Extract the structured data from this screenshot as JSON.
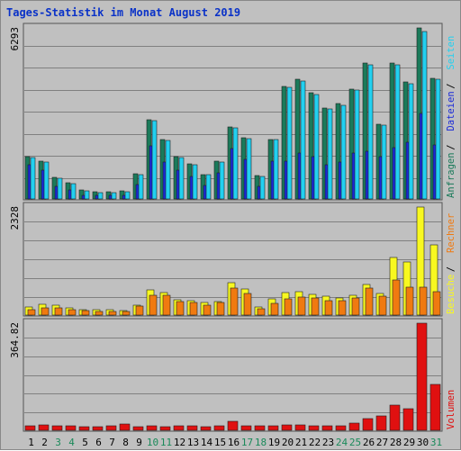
{
  "chart_data": {
    "type": "bar",
    "title": "Tages-Statistik im Monat August 2019",
    "categories": [
      "1",
      "2",
      "3",
      "4",
      "5",
      "6",
      "7",
      "8",
      "9",
      "10",
      "11",
      "12",
      "13",
      "14",
      "15",
      "16",
      "17",
      "18",
      "19",
      "20",
      "21",
      "22",
      "23",
      "24",
      "25",
      "26",
      "27",
      "28",
      "29",
      "30",
      "31"
    ],
    "weekend_days": [
      "3",
      "4",
      "10",
      "11",
      "17",
      "18",
      "24",
      "25",
      "31"
    ],
    "colors": {
      "anfragen": "#1a7a5a",
      "dateien": "#1a2ad8",
      "seiten": "#22d0f0",
      "besuche": "#f8f820",
      "rechner": "#f07a10",
      "volumen": "#e01010",
      "weekday_label": "#000000",
      "weekend_label": "#1a8a5a"
    },
    "panels": [
      {
        "id": "top",
        "scale_label": "6293",
        "max": 6293,
        "legend": [
          {
            "label": "Anfragen",
            "color": "#1a7a5a"
          },
          {
            "label": "Dateien",
            "color": "#1a2ad8"
          },
          {
            "label": "Seiten",
            "color": "#22d0f0"
          }
        ],
        "series": [
          {
            "name": "Anfragen",
            "values": [
              1550,
              1400,
              780,
              590,
              330,
              260,
              260,
              300,
              920,
              2900,
              2200,
              1550,
              1280,
              900,
              1400,
              2650,
              2250,
              870,
              2200,
              4150,
              4400,
              3900,
              3350,
              3500,
              4050,
              5000,
              2750,
              5000,
              4300,
              6293,
              4450
            ]
          },
          {
            "name": "Dateien",
            "values": [
              1250,
              1050,
              480,
              330,
              140,
              120,
              120,
              130,
              520,
              1950,
              1350,
              1050,
              820,
              500,
              950,
              1850,
              1450,
              460,
              1400,
              1400,
              1700,
              1550,
              1250,
              1350,
              1700,
              1750,
              1550,
              1900,
              2100,
              3150,
              2000
            ]
          },
          {
            "name": "Seiten",
            "values": [
              1520,
              1370,
              750,
              560,
              300,
              230,
              230,
              270,
              890,
              2870,
              2160,
              1520,
              1250,
              880,
              1370,
              2620,
              2220,
              840,
              2170,
              4100,
              4340,
              3850,
              3300,
              3460,
              4000,
              4940,
              2720,
              4950,
              4250,
              6150,
              4400
            ]
          }
        ]
      },
      {
        "id": "middle",
        "scale_label": "2328",
        "max": 2328,
        "legend": [
          {
            "label": "Besuche",
            "color": "#f8f820"
          },
          {
            "label": "Rechner",
            "color": "#f07a10"
          }
        ],
        "series": [
          {
            "name": "Besuche",
            "values": [
              180,
              230,
              210,
              160,
              120,
              110,
              110,
              90,
              220,
              550,
              480,
              330,
              310,
              270,
              300,
              700,
              560,
              170,
              340,
              480,
              500,
              450,
              400,
              360,
              420,
              660,
              470,
              1250,
              1150,
              2328,
              1520
            ]
          },
          {
            "name": "Rechner",
            "values": [
              110,
              160,
              150,
              110,
              90,
              80,
              80,
              70,
              190,
              420,
              420,
              290,
              280,
              220,
              270,
              580,
              470,
              140,
              250,
              350,
              380,
              360,
              310,
              310,
              370,
              580,
              400,
              750,
              610,
              610,
              500
            ]
          }
        ]
      },
      {
        "id": "bottom",
        "scale_label": "364.82",
        "max": 364.82,
        "legend": [
          {
            "label": "Volumen",
            "color": "#e01010"
          }
        ],
        "series": [
          {
            "name": "Volumen",
            "values": [
              14,
              19,
              14,
              14,
              12,
              11,
              14,
              20,
              12,
              14,
              13,
              14,
              14,
              13,
              14,
              32,
              14,
              14,
              14,
              18,
              17,
              16,
              16,
              15,
              23,
              41,
              50,
              87,
              75,
              364.82,
              157
            ]
          }
        ]
      }
    ]
  }
}
